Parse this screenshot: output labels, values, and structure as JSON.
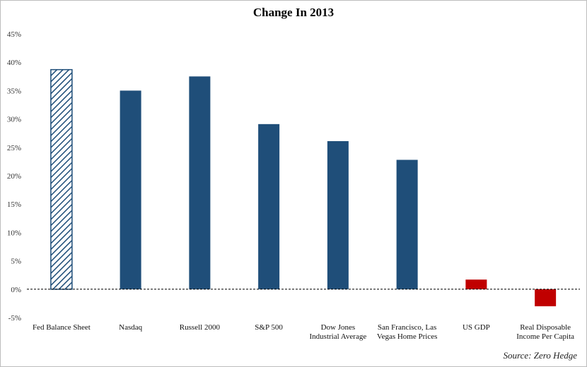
{
  "chart_data": {
    "type": "bar",
    "title": "Change In 2013",
    "categories": [
      [
        "Fed Balance Sheet"
      ],
      [
        "Nasdaq"
      ],
      [
        "Russell 2000"
      ],
      [
        "S&P 500"
      ],
      [
        "Dow Jones",
        "Industrial Average"
      ],
      [
        "San Francisco, Las",
        "Vegas Home Prices"
      ],
      [
        "US GDP"
      ],
      [
        "Real Disposable",
        "Income Per Capita"
      ]
    ],
    "values": [
      38.7,
      35.0,
      37.5,
      29.1,
      26.1,
      22.8,
      1.7,
      -3.0
    ],
    "bar_styles": [
      "hatched",
      "solid",
      "solid",
      "solid",
      "solid",
      "solid",
      "negative",
      "negative"
    ],
    "colors": {
      "primary": "#1f4e79",
      "negative": "#c00000",
      "hatch": "#1f4e79"
    },
    "ylim": [
      -5,
      45
    ],
    "yticks": [
      -5,
      0,
      5,
      10,
      15,
      20,
      25,
      30,
      35,
      40,
      45
    ],
    "ytick_labels": [
      "-5%",
      "0%",
      "5%",
      "10%",
      "15%",
      "20%",
      "25%",
      "30%",
      "35%",
      "40%",
      "45%"
    ],
    "xlabel": "",
    "ylabel": "",
    "grid": false,
    "legend": "none",
    "zero_line": "dashed"
  },
  "source": "Source: Zero Hedge"
}
